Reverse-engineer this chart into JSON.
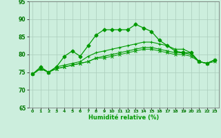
{
  "xlabel": "Humidité relative (%)",
  "xlim": [
    -0.5,
    23.5
  ],
  "ylim": [
    65,
    95
  ],
  "yticks": [
    65,
    70,
    75,
    80,
    85,
    90,
    95
  ],
  "xticks": [
    0,
    1,
    2,
    3,
    4,
    5,
    6,
    7,
    8,
    9,
    10,
    11,
    12,
    13,
    14,
    15,
    16,
    17,
    18,
    19,
    20,
    21,
    22,
    23
  ],
  "background_color": "#cceedd",
  "grid_color": "#aaccbb",
  "line_color": "#009900",
  "series": [
    [
      74.5,
      76.5,
      75.0,
      76.5,
      79.5,
      81.0,
      79.5,
      82.5,
      85.5,
      87.0,
      87.0,
      87.0,
      87.0,
      88.5,
      87.5,
      86.5,
      84.0,
      82.5,
      81.0,
      80.5,
      80.5,
      78.0,
      77.5,
      78.5
    ],
    [
      74.5,
      76.0,
      75.0,
      76.5,
      77.0,
      77.5,
      78.0,
      79.5,
      80.5,
      81.0,
      81.5,
      82.0,
      82.5,
      83.0,
      83.5,
      83.5,
      83.0,
      82.5,
      81.5,
      81.5,
      80.5,
      78.0,
      77.5,
      78.5
    ],
    [
      74.5,
      76.0,
      75.0,
      76.0,
      76.5,
      77.0,
      77.5,
      78.0,
      79.0,
      79.5,
      80.0,
      80.5,
      81.0,
      81.5,
      82.0,
      82.0,
      81.5,
      81.0,
      80.5,
      80.5,
      80.0,
      78.0,
      77.5,
      78.5
    ],
    [
      74.5,
      76.0,
      75.0,
      76.0,
      76.5,
      77.0,
      77.5,
      78.0,
      79.0,
      79.0,
      79.5,
      80.0,
      80.5,
      81.0,
      81.5,
      81.5,
      81.0,
      80.5,
      80.0,
      80.0,
      79.5,
      78.0,
      77.5,
      78.0
    ]
  ]
}
